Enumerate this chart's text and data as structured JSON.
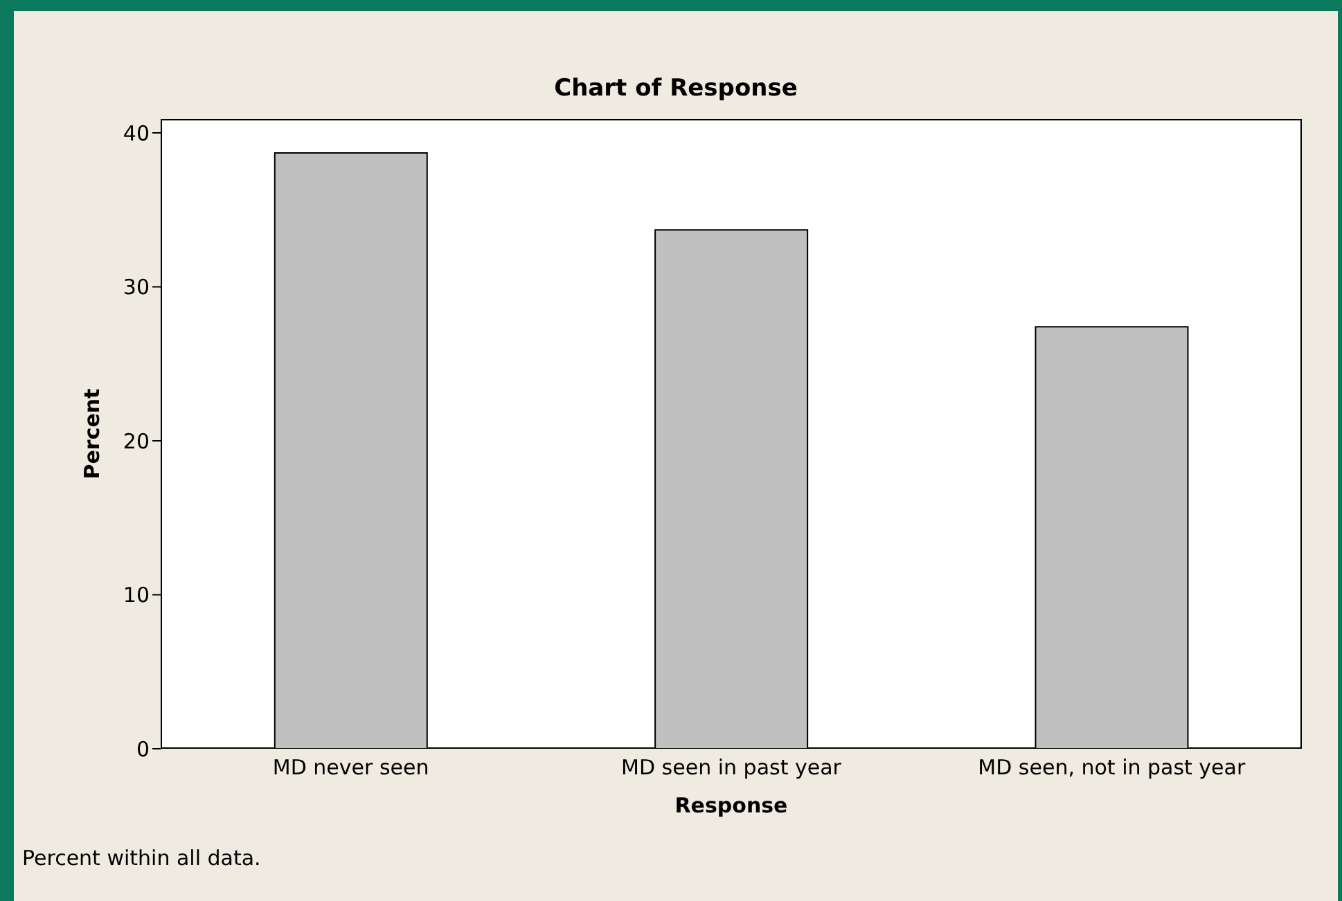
{
  "chart_data": {
    "type": "bar",
    "title": "Chart of Response",
    "xlabel": "Response",
    "ylabel": "Percent",
    "categories": [
      "MD never seen",
      "MD seen in past year",
      "MD seen, not in past year"
    ],
    "values": [
      38.7,
      33.7,
      27.4
    ],
    "color": "#c0c0c0",
    "ylim": [
      0,
      40.9
    ],
    "yticks": [
      0,
      10,
      20,
      30,
      40
    ],
    "grid": false,
    "legend": false,
    "annotations": [
      "Percent within all data."
    ]
  }
}
